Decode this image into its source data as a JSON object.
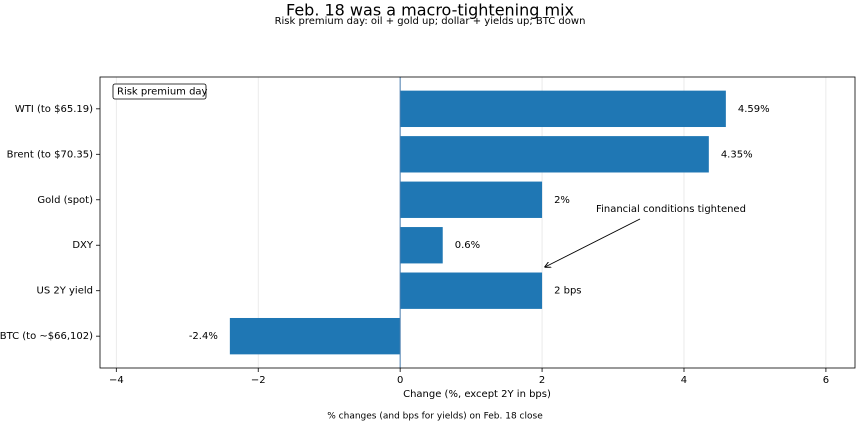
{
  "chart_data": {
    "type": "barh",
    "title": "Feb. 18 was a macro-tightening mix",
    "subtitle": "Risk premium day: oil + gold up; dollar + yields up; BTC down",
    "xlabel": "Change (%, except 2Y in bps)",
    "footnote": "% changes (and bps for yields) on Feb. 18 close",
    "box_label": "Risk premium day",
    "annotation": "Financial conditions tightened",
    "categories": [
      "WTI (to $65.19)",
      "Brent (to $70.35)",
      "Gold (spot)",
      "DXY",
      "US 2Y yield",
      "BTC (to ~$66,102)"
    ],
    "values": [
      4.59,
      4.35,
      2,
      0.6,
      2,
      -2.4
    ],
    "value_labels": [
      "4.59%",
      "4.35%",
      "2%",
      "0.6%",
      "2 bps",
      "-2.4%"
    ],
    "color": "#1f77b4",
    "xlim": [
      -4.23,
      6.41
    ],
    "xticks": [
      {
        "value": -4,
        "label": "−4"
      },
      {
        "value": -2,
        "label": "−2"
      },
      0,
      2,
      4,
      6
    ],
    "grid": true
  }
}
